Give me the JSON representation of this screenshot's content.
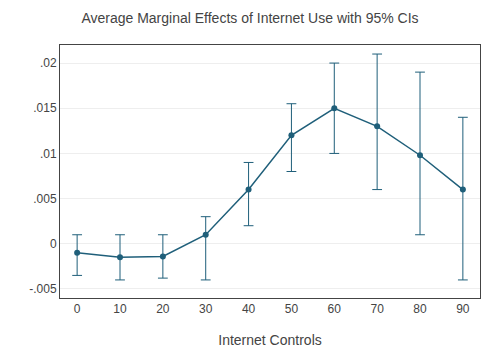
{
  "chart_data": {
    "type": "line",
    "title": "Average Marginal Effects of Internet Use with 95% CIs",
    "xlabel": "Internet Controls",
    "x": [
      0,
      10,
      20,
      30,
      40,
      50,
      60,
      70,
      80,
      90
    ],
    "values": [
      -0.001,
      -0.0015,
      -0.0014,
      0.001,
      0.006,
      0.012,
      0.015,
      0.013,
      0.0098,
      0.006
    ],
    "y_lower": [
      -0.0035,
      -0.004,
      -0.0038,
      -0.004,
      0.002,
      0.008,
      0.01,
      0.006,
      0.001,
      -0.004
    ],
    "y_upper": [
      0.001,
      0.001,
      0.001,
      0.003,
      0.009,
      0.0155,
      0.02,
      0.021,
      0.019,
      0.014
    ],
    "color": "#1f5f7a",
    "marker": "circle",
    "xlim": [
      -4,
      94
    ],
    "xticks": [
      0,
      10,
      20,
      30,
      40,
      50,
      60,
      70,
      80,
      90
    ],
    "ylim": [
      -0.006,
      0.022
    ],
    "yticks": [
      {
        "value": -0.005,
        "label": "-.005"
      },
      0,
      {
        "value": 0.005,
        "label": ".005"
      },
      {
        "value": 0.01,
        "label": ".01"
      },
      {
        "value": 0.015,
        "label": ".015"
      },
      {
        "value": 0.02,
        "label": ".02"
      }
    ],
    "grid": true
  }
}
